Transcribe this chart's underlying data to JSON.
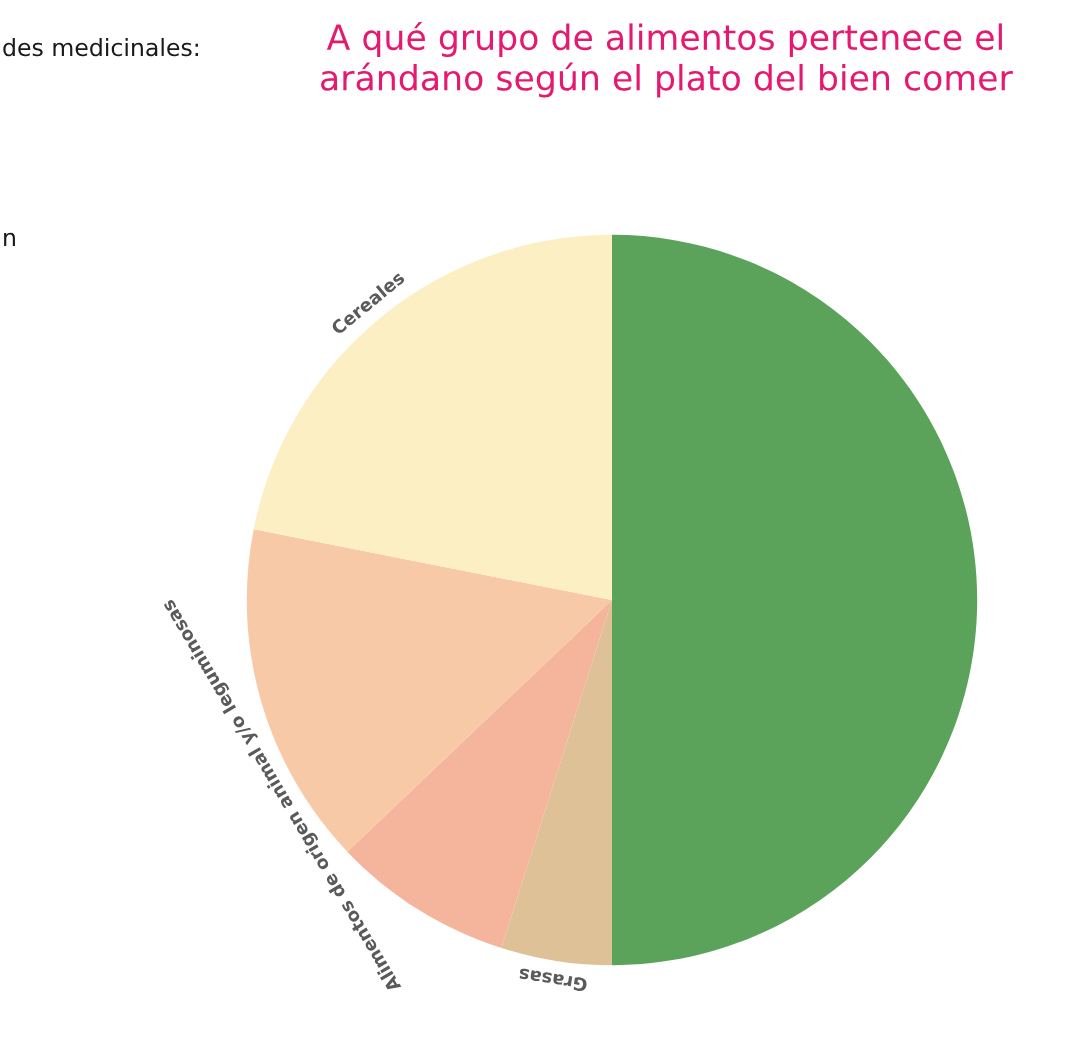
{
  "chart_data": {
    "type": "pie",
    "title": "A qué grupo de alimentos pertenece el arándano según el plato del bien comer",
    "categories": [
      null,
      "Grasas",
      "Alimentos de origen animal y/o leguminosas",
      null,
      "Cereales"
    ],
    "values": [
      50,
      4.9,
      8.0,
      15.2,
      21.9
    ],
    "colors": [
      "#5ba35a",
      "#dfc198",
      "#f5b49c",
      "#f8c9a6",
      "#fcefc4"
    ],
    "annotations": [
      "des medicinales:",
      "n"
    ]
  }
}
